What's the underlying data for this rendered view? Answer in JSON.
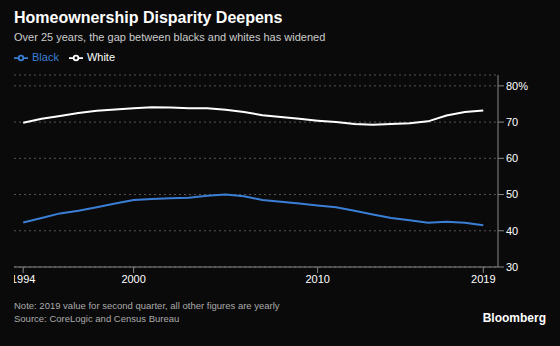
{
  "chart_data": {
    "type": "line",
    "title": "Homeownership Disparity Deepens",
    "subtitle": "Over 25 years, the gap between blacks and whites has widened",
    "annotations": [
      "Note: 2019 value for second quarter, all other figures are yearly",
      "Source: CoreLogic and Census Bureau",
      "Bloomberg"
    ],
    "x": [
      1994,
      1995,
      1996,
      1997,
      1998,
      1999,
      2000,
      2001,
      2002,
      2003,
      2004,
      2005,
      2006,
      2007,
      2008,
      2009,
      2010,
      2011,
      2012,
      2013,
      2014,
      2015,
      2016,
      2017,
      2018,
      2019
    ],
    "series": [
      {
        "name": "White",
        "color": "#ffffff",
        "values": [
          69.8,
          70.9,
          71.7,
          72.5,
          73.1,
          73.5,
          73.8,
          74.1,
          74.0,
          73.8,
          73.8,
          73.4,
          72.8,
          71.9,
          71.4,
          70.9,
          70.4,
          70.0,
          69.5,
          69.3,
          69.5,
          69.7,
          70.2,
          71.8,
          72.8,
          73.2
        ]
      },
      {
        "name": "Black",
        "color": "#3a7fd5",
        "values": [
          42.3,
          43.5,
          44.8,
          45.5,
          46.5,
          47.5,
          48.5,
          48.8,
          49.0,
          49.1,
          49.7,
          50.0,
          49.5,
          48.5,
          48.0,
          47.5,
          47.0,
          46.5,
          45.5,
          44.5,
          43.5,
          42.9,
          42.2,
          42.5,
          42.2,
          41.5
        ]
      }
    ],
    "xlim": [
      1993.5,
      2019.8
    ],
    "xticks": [
      1994,
      2000,
      2010,
      2019
    ],
    "ylim": [
      30,
      83
    ],
    "yticks": [
      30,
      40,
      50,
      60,
      70,
      {
        "value": 80,
        "label": "80%"
      }
    ],
    "grid": true,
    "legend": "top"
  }
}
